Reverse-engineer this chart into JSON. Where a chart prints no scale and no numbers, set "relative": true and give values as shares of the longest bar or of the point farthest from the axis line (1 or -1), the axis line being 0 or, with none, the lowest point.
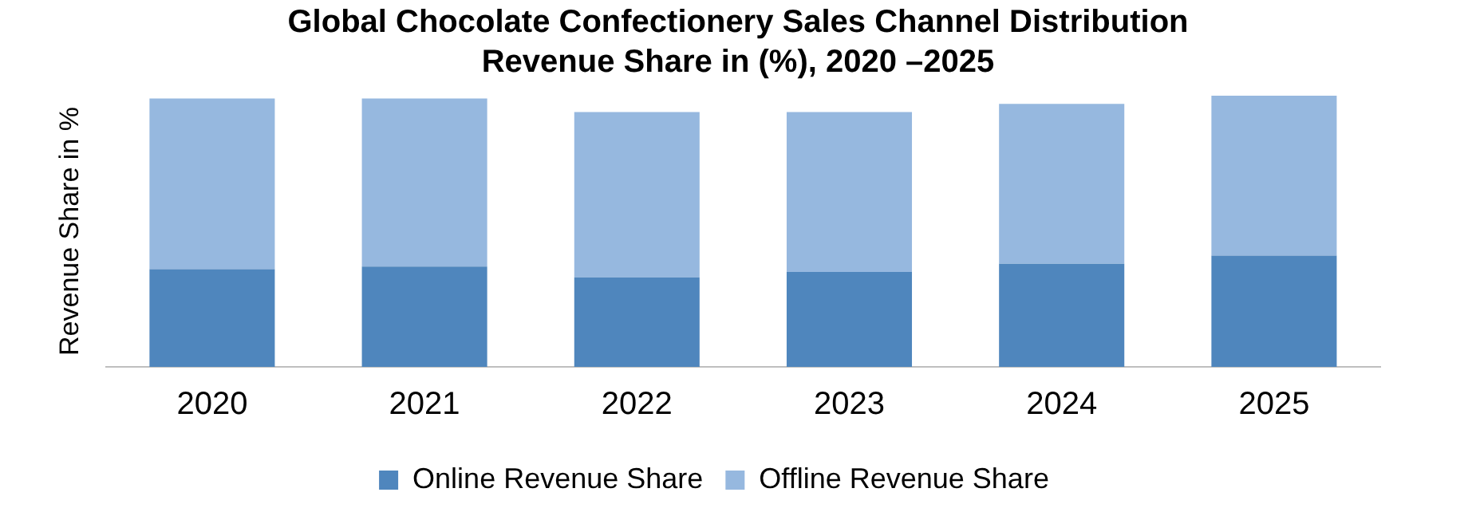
{
  "chart_data": {
    "type": "bar",
    "title": "Global Chocolate Confectionery Sales Channel Distribution Revenue Share in (%), 2020 –2025",
    "ylabel": "Revenue Share in %",
    "categories": [
      "2020",
      "2021",
      "2022",
      "2023",
      "2024",
      "2025"
    ],
    "stacked": true,
    "relative": true,
    "grid": false,
    "legend": "bottom",
    "series": [
      {
        "name": "Online Revenue Share",
        "color": "#4f86bd",
        "values": [
          0.36,
          0.37,
          0.33,
          0.35,
          0.38,
          0.41
        ]
      },
      {
        "name": "Offline Revenue Share",
        "color": "#96b8df",
        "values": [
          0.63,
          0.62,
          0.61,
          0.59,
          0.59,
          0.59
        ]
      }
    ]
  }
}
